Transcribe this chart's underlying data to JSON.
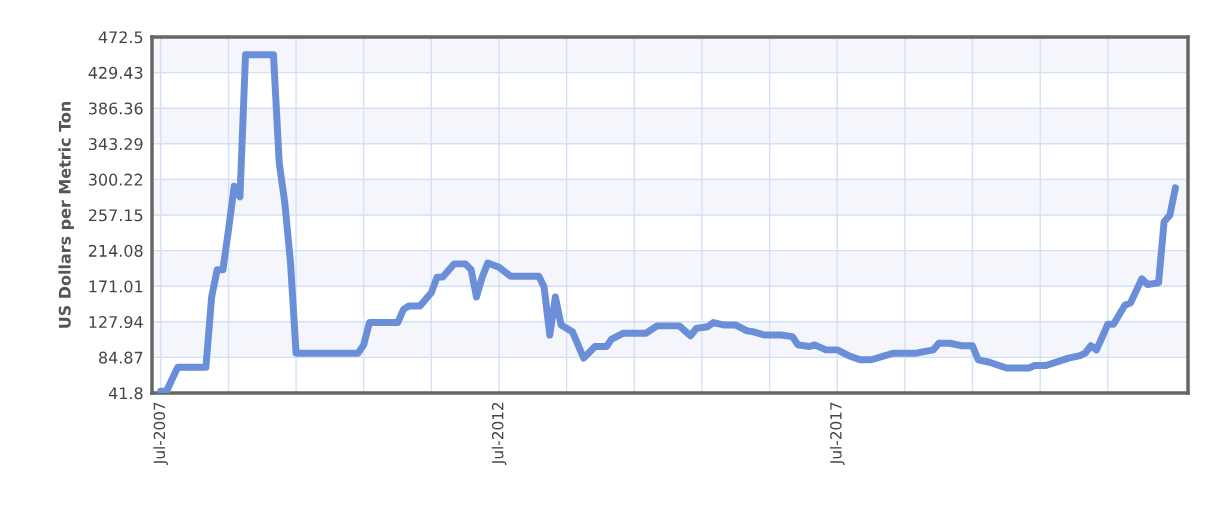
{
  "chart_data": {
    "type": "line",
    "ylabel": "US Dollars per Metric Ton",
    "x": [
      "2007-07",
      "2007-08",
      "2007-10",
      "2008-03",
      "2008-04",
      "2008-05",
      "2008-06",
      "2008-07",
      "2008-08",
      "2008-09",
      "2008-10",
      "2009-03",
      "2009-04",
      "2009-05",
      "2009-06",
      "2009-07",
      "2010-06",
      "2010-07",
      "2010-08",
      "2011-01",
      "2011-02",
      "2011-03",
      "2011-05",
      "2011-07",
      "2011-08",
      "2011-09",
      "2011-11",
      "2012-01",
      "2012-02",
      "2012-03",
      "2012-04",
      "2012-05",
      "2012-07",
      "2012-09",
      "2013-02",
      "2013-03",
      "2013-04",
      "2013-05",
      "2013-06",
      "2013-08",
      "2013-10",
      "2013-12",
      "2014-02",
      "2014-03",
      "2014-05",
      "2014-09",
      "2014-11",
      "2015-03",
      "2015-05",
      "2015-06",
      "2015-08",
      "2015-09",
      "2015-11",
      "2016-01",
      "2016-03",
      "2016-04",
      "2016-06",
      "2016-09",
      "2016-11",
      "2016-12",
      "2017-02",
      "2017-03",
      "2017-05",
      "2017-07",
      "2017-09",
      "2017-11",
      "2018-01",
      "2018-05",
      "2018-09",
      "2018-12",
      "2019-01",
      "2019-03",
      "2019-05",
      "2019-07",
      "2019-08",
      "2019-10",
      "2020-01",
      "2020-05",
      "2020-06",
      "2020-08",
      "2020-12",
      "2021-02",
      "2021-03",
      "2021-04",
      "2021-05",
      "2021-07",
      "2021-08",
      "2021-10",
      "2021-11",
      "2022-01",
      "2022-02",
      "2022-04",
      "2022-05",
      "2022-06",
      "2022-07"
    ],
    "series": [
      {
        "color": "#6a8fd8",
        "values": [
          44,
          44,
          73,
          73,
          158,
          191,
          191,
          239,
          292,
          279,
          451,
          451,
          320,
          272,
          199,
          90,
          90,
          100,
          127,
          127,
          143,
          147,
          147,
          163,
          182,
          182,
          198,
          198,
          191,
          158,
          182,
          199,
          194,
          183,
          183,
          170,
          112,
          158,
          124,
          116,
          84,
          98,
          98,
          107,
          114,
          114,
          123,
          123,
          111,
          120,
          122,
          127,
          124,
          124,
          117,
          116,
          112,
          112,
          110,
          100,
          98,
          100,
          94,
          94,
          87,
          82,
          82,
          90,
          90,
          94,
          102,
          102,
          99,
          99,
          82,
          79,
          72,
          72,
          75,
          75,
          84,
          87,
          90,
          99,
          94,
          125,
          125,
          148,
          151,
          180,
          173,
          175,
          249,
          257,
          290
        ]
      }
    ],
    "xlim": [
      "2007-05-15",
      "2022-09-07"
    ],
    "xticks": [
      {
        "value": "2007-07",
        "label": "Jul-2007"
      },
      {
        "value": "2008-07",
        "label": null
      },
      {
        "value": "2009-07",
        "label": null
      },
      {
        "value": "2010-07",
        "label": null
      },
      {
        "value": "2011-07",
        "label": null
      },
      {
        "value": "2012-07",
        "label": "Jul-2012"
      },
      {
        "value": "2013-07",
        "label": null
      },
      {
        "value": "2014-07",
        "label": null
      },
      {
        "value": "2015-07",
        "label": null
      },
      {
        "value": "2016-07",
        "label": null
      },
      {
        "value": "2017-07",
        "label": "Jul-2017"
      },
      {
        "value": "2018-07",
        "label": null
      },
      {
        "value": "2019-07",
        "label": null
      },
      {
        "value": "2020-07",
        "label": null
      },
      {
        "value": "2021-07",
        "label": null
      }
    ],
    "ylim": [
      41.8,
      472.5
    ],
    "yticks": [
      41.8,
      84.87,
      127.94,
      171.01,
      214.08,
      257.15,
      300.22,
      343.29,
      386.36,
      429.43,
      472.5
    ],
    "grid": true,
    "marker": "none",
    "line_style": "solid"
  }
}
